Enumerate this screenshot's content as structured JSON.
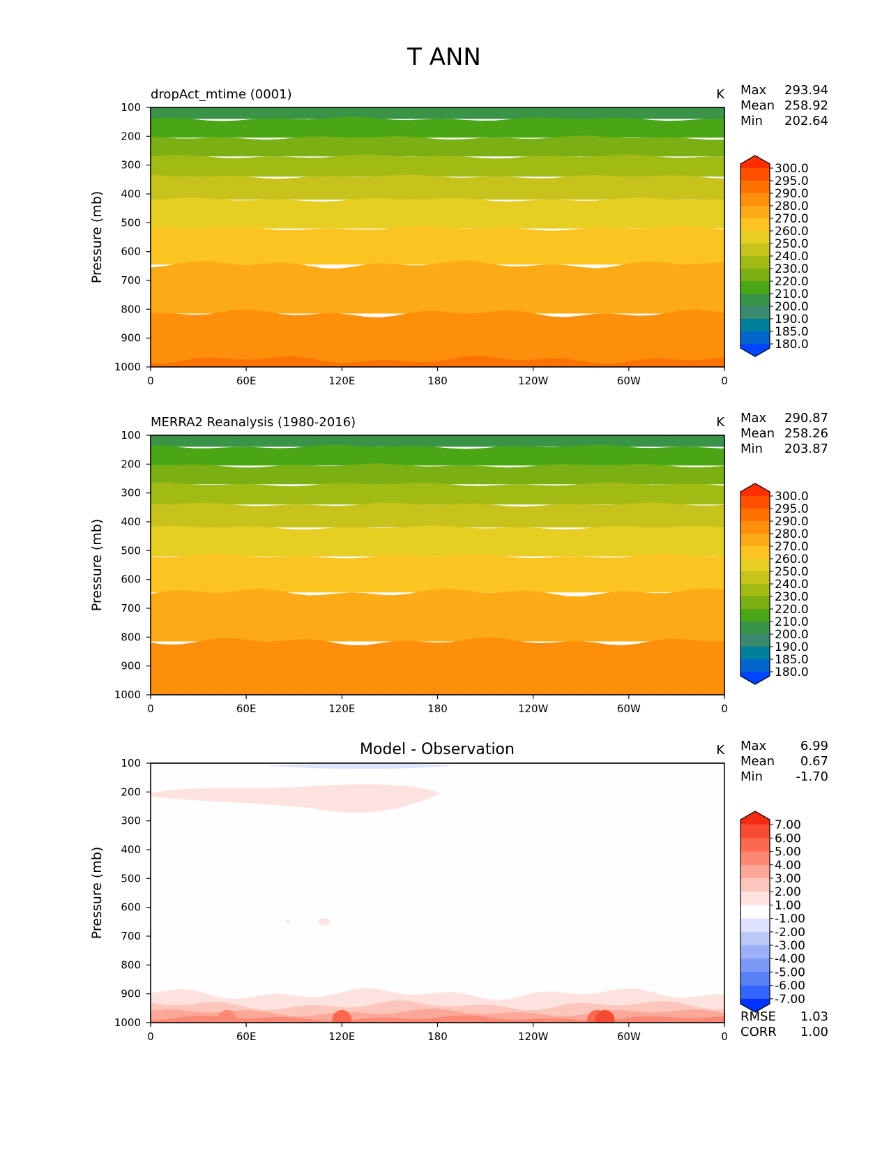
{
  "figure_title": "T ANN",
  "colors": {
    "abs_levels": [
      "#0044ff",
      "#0066cc",
      "#00809a",
      "#3a8a70",
      "#3a9448",
      "#4aa614",
      "#7ab014",
      "#a2ba14",
      "#c8c21c",
      "#e6ce22",
      "#fcc420",
      "#fcaa16",
      "#fd8f0a",
      "#fe7200",
      "#ff5000",
      "#ff2e00"
    ],
    "diff_levels": [
      "#0033ff",
      "#3366ff",
      "#5a80f5",
      "#7c98f5",
      "#9bb0f7",
      "#bcc8f8",
      "#dde3fb",
      "#fefefe",
      "#fde3df",
      "#fcc6bc",
      "#fca898",
      "#fb8874",
      "#f9684f",
      "#f74a32",
      "#f32a14"
    ]
  },
  "chart_data": [
    {
      "type": "heatmap",
      "panel": "top",
      "title_left": "dropAct_mtime (0001)",
      "title_center": "",
      "units": "K",
      "ylabel": "Pressure (mb)",
      "xlabel": "",
      "xticks": [
        "0",
        "60E",
        "120E",
        "180",
        "120W",
        "60W",
        "0"
      ],
      "yticks": [
        "100",
        "200",
        "300",
        "400",
        "500",
        "600",
        "700",
        "800",
        "900",
        "1000"
      ],
      "x_range": [
        0,
        360
      ],
      "y_range": [
        100,
        1000
      ],
      "stats": {
        "max_label": "Max",
        "max": "293.94",
        "mean_label": "Mean",
        "mean": "258.92",
        "min_label": "Min",
        "min": "202.64"
      },
      "colorbar_ticks": [
        "300.0",
        "295.0",
        "290.0",
        "280.0",
        "270.0",
        "260.0",
        "250.0",
        "240.0",
        "230.0",
        "220.0",
        "210.0",
        "200.0",
        "190.0",
        "185.0",
        "180.0"
      ],
      "bands": [
        {
          "p_top": 100,
          "p_bot": 140,
          "color_index": 4
        },
        {
          "p_top": 140,
          "p_bot": 205,
          "color_index": 5
        },
        {
          "p_top": 205,
          "p_bot": 270,
          "color_index": 6
        },
        {
          "p_top": 270,
          "p_bot": 340,
          "color_index": 7
        },
        {
          "p_top": 340,
          "p_bot": 420,
          "color_index": 8
        },
        {
          "p_top": 420,
          "p_bot": 520,
          "color_index": 9
        },
        {
          "p_top": 520,
          "p_bot": 645,
          "color_index": 10
        },
        {
          "p_top": 645,
          "p_bot": 815,
          "color_index": 11
        },
        {
          "p_top": 815,
          "p_bot": 1000,
          "color_index": 12
        },
        {
          "p_top": 975,
          "p_bot": 1000,
          "color_index": 13
        }
      ]
    },
    {
      "type": "heatmap",
      "panel": "middle",
      "title_left": "MERRA2 Reanalysis (1980-2016)",
      "title_center": "",
      "units": "K",
      "ylabel": "Pressure (mb)",
      "xlabel": "",
      "xticks": [
        "0",
        "60E",
        "120E",
        "180",
        "120W",
        "60W",
        "0"
      ],
      "yticks": [
        "100",
        "200",
        "300",
        "400",
        "500",
        "600",
        "700",
        "800",
        "900",
        "1000"
      ],
      "x_range": [
        0,
        360
      ],
      "y_range": [
        100,
        1000
      ],
      "stats": {
        "max_label": "Max",
        "max": "290.87",
        "mean_label": "Mean",
        "mean": "258.26",
        "min_label": "Min",
        "min": "203.87"
      },
      "colorbar_ticks": [
        "300.0",
        "295.0",
        "290.0",
        "280.0",
        "270.0",
        "260.0",
        "250.0",
        "240.0",
        "230.0",
        "220.0",
        "210.0",
        "200.0",
        "190.0",
        "185.0",
        "180.0"
      ],
      "bands": [
        {
          "p_top": 100,
          "p_bot": 140,
          "color_index": 4
        },
        {
          "p_top": 140,
          "p_bot": 205,
          "color_index": 5
        },
        {
          "p_top": 205,
          "p_bot": 270,
          "color_index": 6
        },
        {
          "p_top": 270,
          "p_bot": 340,
          "color_index": 7
        },
        {
          "p_top": 340,
          "p_bot": 420,
          "color_index": 8
        },
        {
          "p_top": 420,
          "p_bot": 520,
          "color_index": 9
        },
        {
          "p_top": 520,
          "p_bot": 645,
          "color_index": 10
        },
        {
          "p_top": 645,
          "p_bot": 815,
          "color_index": 11
        },
        {
          "p_top": 815,
          "p_bot": 1000,
          "color_index": 12
        }
      ]
    },
    {
      "type": "heatmap",
      "panel": "bottom",
      "title_left": "",
      "title_center": "Model - Observation",
      "units": "K",
      "ylabel": "Pressure (mb)",
      "xlabel": "",
      "xticks": [
        "0",
        "60E",
        "120E",
        "180",
        "120W",
        "60W",
        "0"
      ],
      "yticks": [
        "100",
        "200",
        "300",
        "400",
        "500",
        "600",
        "700",
        "800",
        "900",
        "1000"
      ],
      "x_range": [
        0,
        360
      ],
      "y_range": [
        100,
        1000
      ],
      "stats": {
        "max_label": "Max",
        "max": "6.99",
        "mean_label": "Mean",
        "mean": "0.67",
        "min_label": "Min",
        "min": "-1.70"
      },
      "colorbar_ticks": [
        "7.00",
        "6.00",
        "5.00",
        "4.00",
        "3.00",
        "2.00",
        "1.00",
        "-1.00",
        "-2.00",
        "-3.00",
        "-4.00",
        "-5.00",
        "-6.00",
        "-7.00"
      ],
      "metrics": {
        "rmse_label": "RMSE",
        "rmse": "1.03",
        "corr_label": "CORR",
        "corr": "1.00"
      }
    }
  ]
}
